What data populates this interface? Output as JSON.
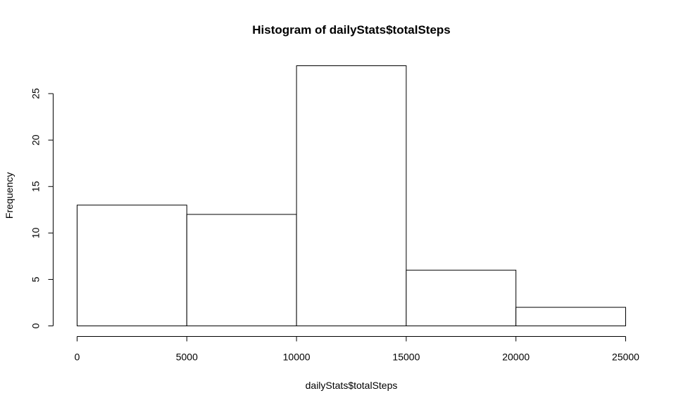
{
  "chart_data": {
    "type": "bar",
    "title": "Histogram of dailyStats$totalSteps",
    "xlabel": "dailyStats$totalSteps",
    "ylabel": "Frequency",
    "bins": [
      {
        "from": 0,
        "to": 5000,
        "count": 13
      },
      {
        "from": 5000,
        "to": 10000,
        "count": 12
      },
      {
        "from": 10000,
        "to": 15000,
        "count": 28
      },
      {
        "from": 15000,
        "to": 20000,
        "count": 6
      },
      {
        "from": 20000,
        "to": 25000,
        "count": 2
      }
    ],
    "xlim": [
      0,
      25000
    ],
    "ylim": [
      0,
      28
    ],
    "xticks": [
      0,
      5000,
      10000,
      15000,
      20000,
      25000
    ],
    "yticks": [
      0,
      5,
      10,
      15,
      20,
      25
    ],
    "grid": false,
    "colors": {
      "bar_fill": "#ffffff",
      "bar_stroke": "#000000"
    }
  }
}
